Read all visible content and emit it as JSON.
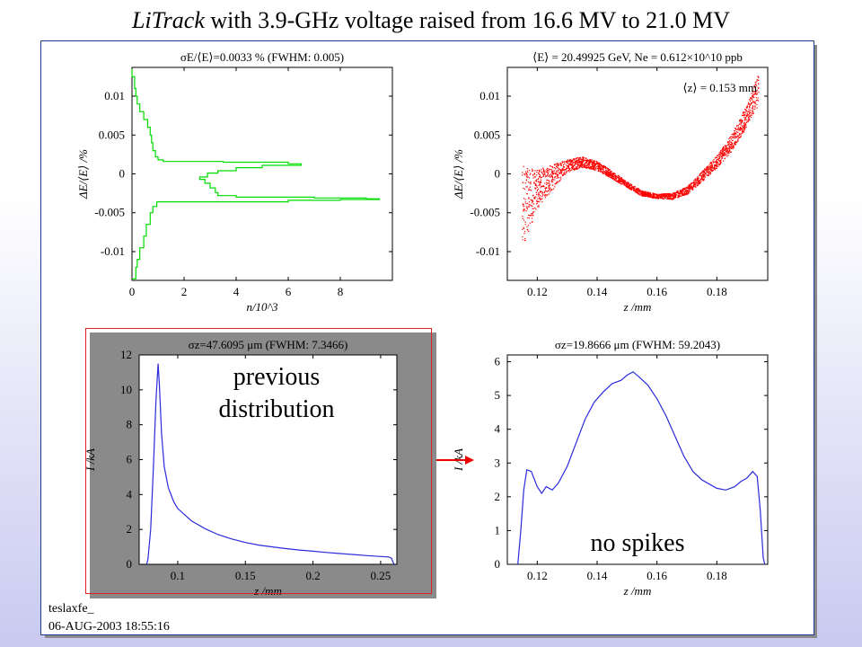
{
  "title": {
    "part_italic": "LiTrack",
    "part_rest": " with 3.9-GHz voltage raised from 16.6 MV to 21.0 MV"
  },
  "annotations": {
    "previous": "previous",
    "distribution": "distribution",
    "no_spikes": "no spikes"
  },
  "footer": {
    "tag": "teslaxfe_",
    "date": "06-AUG-2003 18:55:16"
  },
  "colors": {
    "energy_hist": "#00dd00",
    "phase_space": "#ff0000",
    "current": "#2b2bdd",
    "arrow": "#ee0000",
    "box": "#dd2222"
  },
  "chart_data": [
    {
      "id": "energy-histogram",
      "type": "line",
      "title": "σE/⟨E⟩=0.0033 % (FWHM: 0.005)",
      "xlabel": "n/10^3",
      "ylabel": "ΔE/⟨E⟩ /%",
      "xlim": [
        0,
        10
      ],
      "ylim": [
        -0.0137,
        0.0137
      ],
      "xticks": [
        0,
        2,
        4,
        6,
        8
      ],
      "xtick_labels": [
        "0",
        "2",
        "4",
        "6",
        "8"
      ],
      "yticks": [
        0.01,
        0.005,
        0,
        -0.005,
        -0.01
      ],
      "ytick_labels": [
        "0.01",
        "0.005",
        "0",
        "-0.005",
        "-0.01"
      ],
      "points": [
        [
          0.0,
          -0.0135
        ],
        [
          0.15,
          -0.012
        ],
        [
          0.2,
          -0.011
        ],
        [
          0.3,
          -0.0095
        ],
        [
          0.45,
          -0.008
        ],
        [
          0.55,
          -0.0065
        ],
        [
          0.7,
          -0.005
        ],
        [
          0.8,
          -0.0042
        ],
        [
          0.95,
          -0.0036
        ],
        [
          6.0,
          -0.0034
        ],
        [
          8.0,
          -0.0033
        ],
        [
          9.5,
          -0.0032
        ],
        [
          9.0,
          -0.0031
        ],
        [
          7.0,
          -0.003
        ],
        [
          4.0,
          -0.0028
        ],
        [
          3.3,
          -0.0024
        ],
        [
          3.2,
          -0.0018
        ],
        [
          3.0,
          -0.0012
        ],
        [
          2.8,
          -0.0007
        ],
        [
          2.6,
          -0.0004
        ],
        [
          2.9,
          0.0001
        ],
        [
          3.3,
          0.0004
        ],
        [
          4.0,
          0.0008
        ],
        [
          5.0,
          0.0011
        ],
        [
          6.5,
          0.0013
        ],
        [
          6.0,
          0.0015
        ],
        [
          3.5,
          0.0016
        ],
        [
          1.2,
          0.0018
        ],
        [
          1.0,
          0.0022
        ],
        [
          0.9,
          0.003
        ],
        [
          0.8,
          0.004
        ],
        [
          0.75,
          0.005
        ],
        [
          0.7,
          0.006
        ],
        [
          0.6,
          0.007
        ],
        [
          0.45,
          0.008
        ],
        [
          0.3,
          0.009
        ],
        [
          0.2,
          0.01
        ],
        [
          0.15,
          0.011
        ],
        [
          0.1,
          0.0125
        ],
        [
          0.0,
          0.0135
        ]
      ]
    },
    {
      "id": "phase-space",
      "type": "scatter",
      "title": "⟨E⟩ = 20.49925 GeV, Ne = 0.612×10^10 ppb",
      "annotation": "⟨z⟩ = 0.153 mm",
      "xlabel": "z /mm",
      "ylabel": "ΔE/⟨E⟩ /%",
      "xlim": [
        0.11,
        0.197
      ],
      "ylim": [
        -0.0137,
        0.0137
      ],
      "xticks": [
        0.12,
        0.14,
        0.16,
        0.18
      ],
      "xtick_labels": [
        "0.12",
        "0.14",
        "0.16",
        "0.18"
      ],
      "yticks": [
        0.01,
        0.005,
        0,
        -0.005,
        -0.01
      ],
      "ytick_labels": [
        "0.01",
        "0.005",
        "0",
        "-0.005",
        "-0.01"
      ],
      "band_center": [
        [
          0.115,
          -0.0043
        ],
        [
          0.12,
          -0.002
        ],
        [
          0.125,
          -0.0005
        ],
        [
          0.13,
          0.001
        ],
        [
          0.135,
          0.0015
        ],
        [
          0.14,
          0.001
        ],
        [
          0.145,
          -0.0001
        ],
        [
          0.15,
          -0.0014
        ],
        [
          0.155,
          -0.0025
        ],
        [
          0.16,
          -0.0029
        ],
        [
          0.165,
          -0.0029
        ],
        [
          0.17,
          -0.0022
        ],
        [
          0.175,
          -0.0004
        ],
        [
          0.18,
          0.0015
        ],
        [
          0.185,
          0.004
        ],
        [
          0.19,
          0.0074
        ],
        [
          0.194,
          0.0108
        ]
      ],
      "band_halfwidth": [
        [
          0.115,
          0.0055
        ],
        [
          0.12,
          0.0025
        ],
        [
          0.13,
          0.0008
        ],
        [
          0.14,
          0.0006
        ],
        [
          0.15,
          0.0004
        ],
        [
          0.16,
          0.0003
        ],
        [
          0.17,
          0.0005
        ],
        [
          0.18,
          0.0008
        ],
        [
          0.19,
          0.0014
        ],
        [
          0.194,
          0.0022
        ]
      ]
    },
    {
      "id": "previous-current",
      "type": "line",
      "title": "σz=47.6095 μm (FWHM: 7.3466)",
      "xlabel": "z /mm",
      "ylabel": "I /kA",
      "xlim": [
        0.0715,
        0.262
      ],
      "ylim": [
        0,
        12
      ],
      "xticks": [
        0.1,
        0.15,
        0.2,
        0.25
      ],
      "xtick_labels": [
        "0.1",
        "0.15",
        "0.2",
        "0.25"
      ],
      "yticks": [
        0,
        2,
        4,
        6,
        8,
        10,
        12
      ],
      "ytick_labels": [
        "0",
        "2",
        "4",
        "6",
        "8",
        "10",
        "12"
      ],
      "points": [
        [
          0.077,
          0
        ],
        [
          0.078,
          0.3
        ],
        [
          0.08,
          2
        ],
        [
          0.082,
          5.5
        ],
        [
          0.084,
          9.5
        ],
        [
          0.0855,
          11.5
        ],
        [
          0.0865,
          10.2
        ],
        [
          0.088,
          7.5
        ],
        [
          0.09,
          5.6
        ],
        [
          0.093,
          4.4
        ],
        [
          0.097,
          3.6
        ],
        [
          0.1,
          3.2
        ],
        [
          0.105,
          2.85
        ],
        [
          0.11,
          2.5
        ],
        [
          0.12,
          2.05
        ],
        [
          0.13,
          1.7
        ],
        [
          0.14,
          1.45
        ],
        [
          0.15,
          1.25
        ],
        [
          0.16,
          1.1
        ],
        [
          0.17,
          1.0
        ],
        [
          0.18,
          0.9
        ],
        [
          0.19,
          0.82
        ],
        [
          0.2,
          0.75
        ],
        [
          0.21,
          0.68
        ],
        [
          0.22,
          0.62
        ],
        [
          0.23,
          0.56
        ],
        [
          0.24,
          0.5
        ],
        [
          0.25,
          0.45
        ],
        [
          0.256,
          0.42
        ],
        [
          0.258,
          0.35
        ],
        [
          0.259,
          0.15
        ],
        [
          0.26,
          0
        ]
      ]
    },
    {
      "id": "new-current",
      "type": "line",
      "title": "σz=19.8666 μm (FWHM: 59.2043)",
      "xlabel": "z /mm",
      "ylabel": "I /kA",
      "xlim": [
        0.11,
        0.197
      ],
      "ylim": [
        0,
        6.2
      ],
      "xticks": [
        0.12,
        0.14,
        0.16,
        0.18
      ],
      "xtick_labels": [
        "0.12",
        "0.14",
        "0.16",
        "0.18"
      ],
      "yticks": [
        0,
        1,
        2,
        3,
        4,
        5,
        6
      ],
      "ytick_labels": [
        "0",
        "1",
        "2",
        "3",
        "4",
        "5",
        "6"
      ],
      "points": [
        [
          0.1135,
          0
        ],
        [
          0.1145,
          1.0
        ],
        [
          0.1155,
          2.2
        ],
        [
          0.1165,
          2.8
        ],
        [
          0.118,
          2.75
        ],
        [
          0.12,
          2.3
        ],
        [
          0.1215,
          2.1
        ],
        [
          0.123,
          2.3
        ],
        [
          0.125,
          2.2
        ],
        [
          0.127,
          2.4
        ],
        [
          0.13,
          2.9
        ],
        [
          0.133,
          3.6
        ],
        [
          0.136,
          4.3
        ],
        [
          0.139,
          4.8
        ],
        [
          0.142,
          5.1
        ],
        [
          0.145,
          5.35
        ],
        [
          0.148,
          5.45
        ],
        [
          0.15,
          5.6
        ],
        [
          0.152,
          5.7
        ],
        [
          0.154,
          5.55
        ],
        [
          0.157,
          5.3
        ],
        [
          0.16,
          4.9
        ],
        [
          0.163,
          4.4
        ],
        [
          0.166,
          3.8
        ],
        [
          0.169,
          3.2
        ],
        [
          0.172,
          2.75
        ],
        [
          0.175,
          2.5
        ],
        [
          0.178,
          2.35
        ],
        [
          0.18,
          2.25
        ],
        [
          0.183,
          2.2
        ],
        [
          0.186,
          2.3
        ],
        [
          0.188,
          2.45
        ],
        [
          0.19,
          2.55
        ],
        [
          0.192,
          2.75
        ],
        [
          0.1935,
          2.6
        ],
        [
          0.1945,
          1.6
        ],
        [
          0.1955,
          0.2
        ],
        [
          0.196,
          0
        ]
      ]
    }
  ]
}
